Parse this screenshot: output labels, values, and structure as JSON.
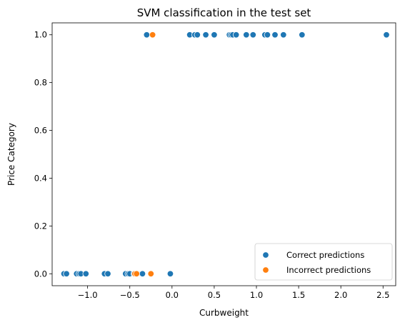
{
  "chart_data": {
    "type": "scatter",
    "title": "SVM classification in the test set",
    "xlabel": "Curbweight",
    "ylabel": "Price Category",
    "xlim": [
      -1.42,
      2.65
    ],
    "ylim": [
      -0.05,
      1.05
    ],
    "xticks": [
      {
        "value": -1.0,
        "label": "−1.0"
      },
      {
        "value": -0.5,
        "label": "−0.5"
      },
      {
        "value": 0.0,
        "label": "0.0"
      },
      {
        "value": 0.5,
        "label": "0.5"
      },
      {
        "value": 1.0,
        "label": "1.0"
      },
      {
        "value": 1.5,
        "label": "1.5"
      },
      {
        "value": 2.0,
        "label": "2.0"
      },
      {
        "value": 2.5,
        "label": "2.5"
      }
    ],
    "yticks": [
      {
        "value": 0.0,
        "label": "0.0"
      },
      {
        "value": 0.2,
        "label": "0.2"
      },
      {
        "value": 0.4,
        "label": "0.4"
      },
      {
        "value": 0.6,
        "label": "0.6"
      },
      {
        "value": 0.8,
        "label": "0.8"
      },
      {
        "value": 1.0,
        "label": "1.0"
      }
    ],
    "grid": false,
    "legend_position": "lower-right",
    "series": [
      {
        "name": "Correct predictions",
        "color": "#1f77b4",
        "points": [
          {
            "x": -1.28,
            "y": 0
          },
          {
            "x": -1.25,
            "y": 0
          },
          {
            "x": -1.13,
            "y": 0
          },
          {
            "x": -1.1,
            "y": 0
          },
          {
            "x": -1.08,
            "y": 0
          },
          {
            "x": -1.02,
            "y": 0
          },
          {
            "x": -0.8,
            "y": 0
          },
          {
            "x": -0.76,
            "y": 0
          },
          {
            "x": -0.55,
            "y": 0
          },
          {
            "x": -0.52,
            "y": 0
          },
          {
            "x": -0.5,
            "y": 0
          },
          {
            "x": -0.45,
            "y": 0
          },
          {
            "x": -0.41,
            "y": 0
          },
          {
            "x": -0.35,
            "y": 0
          },
          {
            "x": -0.02,
            "y": 0
          },
          {
            "x": -0.3,
            "y": 1
          },
          {
            "x": 0.21,
            "y": 1
          },
          {
            "x": 0.27,
            "y": 1
          },
          {
            "x": 0.3,
            "y": 1
          },
          {
            "x": 0.4,
            "y": 1
          },
          {
            "x": 0.5,
            "y": 1
          },
          {
            "x": 0.68,
            "y": 1
          },
          {
            "x": 0.7,
            "y": 1
          },
          {
            "x": 0.72,
            "y": 1
          },
          {
            "x": 0.76,
            "y": 1
          },
          {
            "x": 0.88,
            "y": 1
          },
          {
            "x": 0.96,
            "y": 1
          },
          {
            "x": 1.1,
            "y": 1
          },
          {
            "x": 1.13,
            "y": 1
          },
          {
            "x": 1.22,
            "y": 1
          },
          {
            "x": 1.32,
            "y": 1
          },
          {
            "x": 1.54,
            "y": 1
          },
          {
            "x": 2.54,
            "y": 1
          }
        ]
      },
      {
        "name": "Incorrect predictions",
        "color": "#ff7f0e",
        "points": [
          {
            "x": -0.44,
            "y": 0
          },
          {
            "x": -0.42,
            "y": 0
          },
          {
            "x": -0.25,
            "y": 0
          },
          {
            "x": -0.23,
            "y": 1
          }
        ]
      }
    ]
  }
}
